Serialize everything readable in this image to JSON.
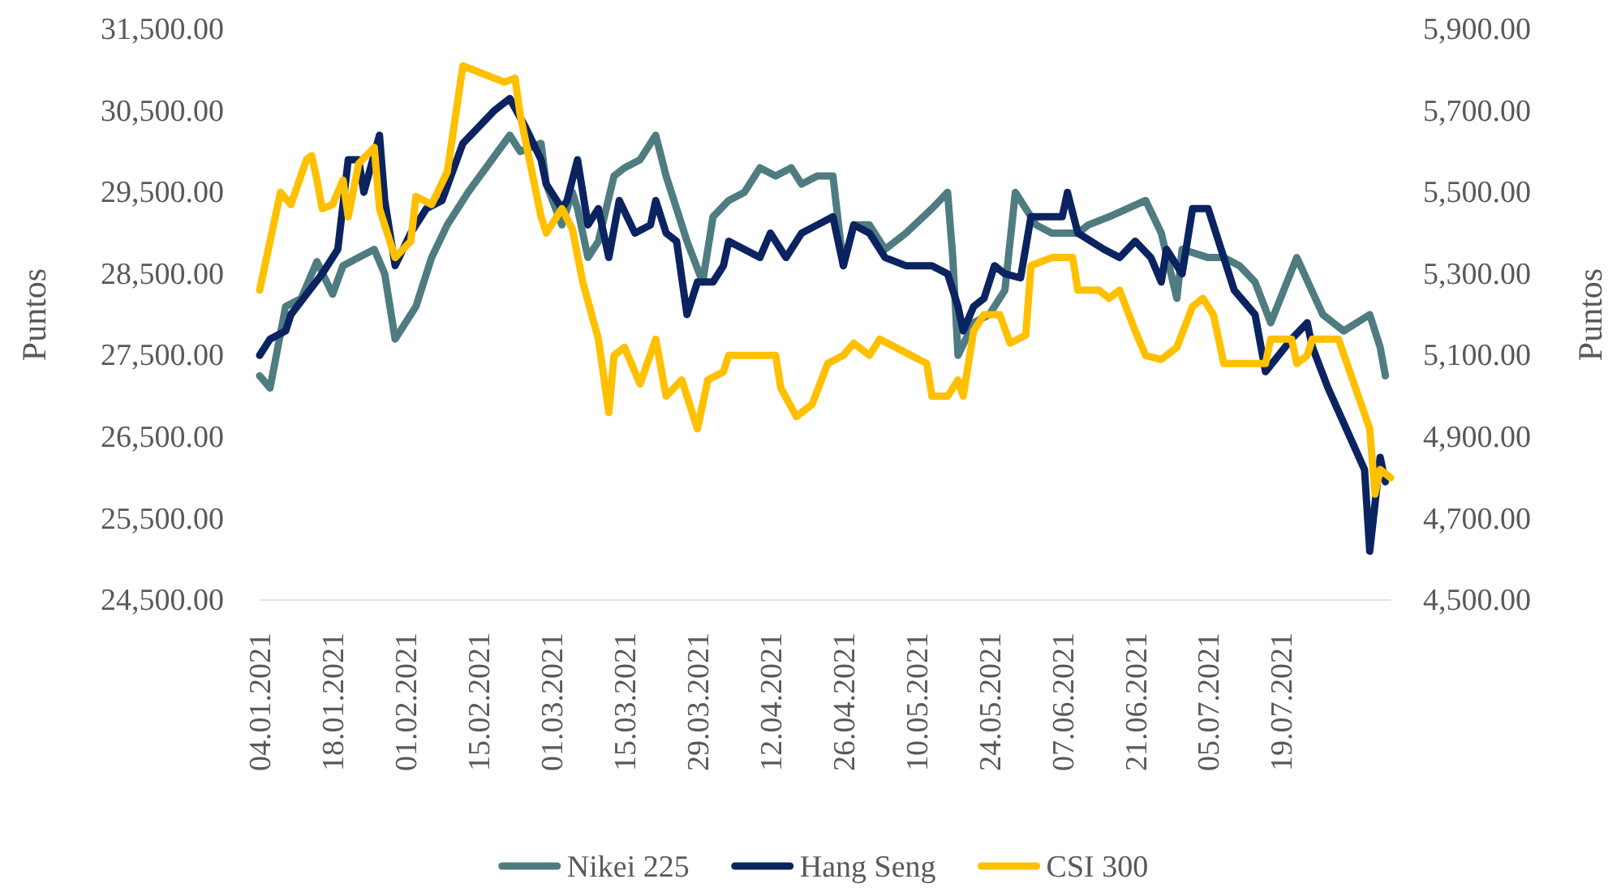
{
  "chart_data": {
    "type": "line",
    "ylabel": "Puntos",
    "y2label": "Puntos",
    "legend": "bottom",
    "line_style": "solid",
    "marker": "none",
    "grid": false,
    "xticks": [
      {
        "value": "2021-01-04",
        "label": "04.01.2021"
      },
      {
        "value": "2021-01-18",
        "label": "18.01.2021"
      },
      {
        "value": "2021-02-01",
        "label": "01.02.2021"
      },
      {
        "value": "2021-02-15",
        "label": "15.02.2021"
      },
      {
        "value": "2021-03-01",
        "label": "01.03.2021"
      },
      {
        "value": "2021-03-15",
        "label": "15.03.2021"
      },
      {
        "value": "2021-03-29",
        "label": "29.03.2021"
      },
      {
        "value": "2021-04-12",
        "label": "12.04.2021"
      },
      {
        "value": "2021-04-26",
        "label": "26.04.2021"
      },
      {
        "value": "2021-05-10",
        "label": "10.05.2021"
      },
      {
        "value": "2021-05-24",
        "label": "24.05.2021"
      },
      {
        "value": "2021-06-07",
        "label": "07.06.2021"
      },
      {
        "value": "2021-06-21",
        "label": "21.06.2021"
      },
      {
        "value": "2021-07-05",
        "label": "05.07.2021"
      },
      {
        "value": "2021-07-19",
        "label": "19.07.2021"
      }
    ],
    "xlim": [
      "2021-01-04",
      "2021-08-09"
    ],
    "ylim": [
      24500,
      31500
    ],
    "yticks": [
      {
        "value": 24500,
        "label": "24,500.00"
      },
      {
        "value": 25500,
        "label": "25,500.00"
      },
      {
        "value": 26500,
        "label": "26,500.00"
      },
      {
        "value": 27500,
        "label": "27,500.00"
      },
      {
        "value": 28500,
        "label": "28,500.00"
      },
      {
        "value": 29500,
        "label": "29,500.00"
      },
      {
        "value": 30500,
        "label": "30,500.00"
      },
      {
        "value": 31500,
        "label": "31,500.00"
      }
    ],
    "y2lim": [
      4500,
      5900
    ],
    "y2ticks": [
      {
        "value": 4500,
        "label": "4,500.00"
      },
      {
        "value": 4700,
        "label": "4,700.00"
      },
      {
        "value": 4900,
        "label": "4,900.00"
      },
      {
        "value": 5100,
        "label": "5,100.00"
      },
      {
        "value": 5300,
        "label": "5,300.00"
      },
      {
        "value": 5500,
        "label": "5,500.00"
      },
      {
        "value": 5700,
        "label": "5,700.00"
      },
      {
        "value": 5900,
        "label": "5,900.00"
      }
    ],
    "series": [
      {
        "name": "Nikei 225",
        "color": "#4f7c80",
        "x": [
          "2021-01-04",
          "2021-01-06",
          "2021-01-09",
          "2021-01-12",
          "2021-01-15",
          "2021-01-18",
          "2021-01-20",
          "2021-01-23",
          "2021-01-26",
          "2021-01-28",
          "2021-01-30",
          "2021-02-03",
          "2021-02-06",
          "2021-02-09",
          "2021-02-13",
          "2021-02-21",
          "2021-02-23",
          "2021-02-27",
          "2021-02-28",
          "2021-03-03",
          "2021-03-05",
          "2021-03-06",
          "2021-03-08",
          "2021-03-10",
          "2021-03-13",
          "2021-03-15",
          "2021-03-18",
          "2021-03-21",
          "2021-03-23",
          "2021-03-27",
          "2021-03-30",
          "2021-04-01",
          "2021-04-04",
          "2021-04-07",
          "2021-04-10",
          "2021-04-13",
          "2021-04-16",
          "2021-04-18",
          "2021-04-21",
          "2021-04-24",
          "2021-04-26",
          "2021-04-28",
          "2021-05-01",
          "2021-05-04",
          "2021-05-08",
          "2021-05-13",
          "2021-05-16",
          "2021-05-17",
          "2021-05-18",
          "2021-05-21",
          "2021-05-24",
          "2021-05-27",
          "2021-05-29",
          "2021-06-02",
          "2021-06-05",
          "2021-06-10",
          "2021-06-12",
          "2021-06-16",
          "2021-06-23",
          "2021-06-26",
          "2021-06-29",
          "2021-06-30",
          "2021-07-05",
          "2021-07-08",
          "2021-07-11",
          "2021-07-14",
          "2021-07-17",
          "2021-07-22",
          "2021-07-27",
          "2021-07-31",
          "2021-08-05",
          "2021-08-07",
          "2021-08-08"
        ],
        "values": [
          27250,
          27100,
          28100,
          28200,
          28650,
          28250,
          28600,
          28700,
          28800,
          28500,
          27700,
          28100,
          28700,
          29100,
          29500,
          30200,
          30000,
          30100,
          29600,
          29100,
          29500,
          29300,
          28700,
          28900,
          29700,
          29800,
          29900,
          30200,
          29700,
          28900,
          28400,
          29200,
          29400,
          29500,
          29800,
          29700,
          29800,
          29600,
          29700,
          29700,
          28600,
          29100,
          29100,
          28800,
          29000,
          29300,
          29500,
          28700,
          27500,
          27900,
          28000,
          28300,
          29500,
          29100,
          29000,
          29000,
          29100,
          29200,
          29400,
          29000,
          28200,
          28800,
          28700,
          28700,
          28600,
          28400,
          27900,
          28700,
          28000,
          27800,
          28000,
          27600,
          27250
        ]
      },
      {
        "name": "Hang Seng",
        "color": "#0b2360",
        "x": [
          "2021-01-04",
          "2021-01-06",
          "2021-01-09",
          "2021-01-10",
          "2021-01-13",
          "2021-01-16",
          "2021-01-19",
          "2021-01-21",
          "2021-01-23",
          "2021-01-24",
          "2021-01-27",
          "2021-01-28",
          "2021-01-30",
          "2021-02-02",
          "2021-02-05",
          "2021-02-08",
          "2021-02-12",
          "2021-02-18",
          "2021-02-21",
          "2021-02-24",
          "2021-02-27",
          "2021-02-28",
          "2021-03-03",
          "2021-03-04",
          "2021-03-06",
          "2021-03-08",
          "2021-03-10",
          "2021-03-12",
          "2021-03-14",
          "2021-03-17",
          "2021-03-20",
          "2021-03-21",
          "2021-03-23",
          "2021-03-25",
          "2021-03-27",
          "2021-03-29",
          "2021-04-01",
          "2021-04-03",
          "2021-04-04",
          "2021-04-07",
          "2021-04-10",
          "2021-04-12",
          "2021-04-15",
          "2021-04-18",
          "2021-04-21",
          "2021-04-24",
          "2021-04-26",
          "2021-04-28",
          "2021-05-01",
          "2021-05-04",
          "2021-05-08",
          "2021-05-13",
          "2021-05-16",
          "2021-05-18",
          "2021-05-19",
          "2021-05-21",
          "2021-05-23",
          "2021-05-25",
          "2021-05-27",
          "2021-05-30",
          "2021-06-01",
          "2021-06-04",
          "2021-06-07",
          "2021-06-08",
          "2021-06-10",
          "2021-06-15",
          "2021-06-18",
          "2021-06-21",
          "2021-06-24",
          "2021-06-26",
          "2021-06-27",
          "2021-06-30",
          "2021-07-02",
          "2021-07-05",
          "2021-07-10",
          "2021-07-14",
          "2021-07-16",
          "2021-07-21",
          "2021-07-24",
          "2021-07-25",
          "2021-07-28",
          "2021-08-04",
          "2021-08-05",
          "2021-08-07",
          "2021-08-08"
        ],
        "values": [
          27500,
          27700,
          27800,
          28000,
          28250,
          28500,
          28800,
          29900,
          29900,
          29500,
          30200,
          29400,
          28600,
          29000,
          29300,
          29400,
          30100,
          30500,
          30650,
          30300,
          29900,
          29600,
          29300,
          29400,
          29900,
          29100,
          29300,
          28700,
          29400,
          29000,
          29100,
          29400,
          29000,
          28900,
          28000,
          28400,
          28400,
          28600,
          28900,
          28800,
          28700,
          29000,
          28700,
          29000,
          29100,
          29200,
          28600,
          29100,
          29000,
          28700,
          28600,
          28600,
          28500,
          28100,
          27800,
          28100,
          28200,
          28600,
          28500,
          28450,
          29200,
          29200,
          29200,
          29500,
          29000,
          28800,
          28700,
          28900,
          28700,
          28400,
          28800,
          28500,
          29300,
          29300,
          28300,
          28000,
          27300,
          27700,
          27900,
          27600,
          27100,
          26100,
          25100,
          26250,
          25950
        ]
      },
      {
        "name": "CSI 300",
        "color": "#ffc000",
        "axis": "y2",
        "x": [
          "2021-01-04",
          "2021-01-06",
          "2021-01-08",
          "2021-01-10",
          "2021-01-13",
          "2021-01-14",
          "2021-01-15",
          "2021-01-16",
          "2021-01-18",
          "2021-01-20",
          "2021-01-21",
          "2021-01-23",
          "2021-01-26",
          "2021-01-27",
          "2021-01-30",
          "2021-02-02",
          "2021-02-03",
          "2021-02-06",
          "2021-02-09",
          "2021-02-12",
          "2021-02-20",
          "2021-02-22",
          "2021-02-23",
          "2021-02-27",
          "2021-02-28",
          "2021-03-03",
          "2021-03-05",
          "2021-03-07",
          "2021-03-10",
          "2021-03-12",
          "2021-03-13",
          "2021-03-15",
          "2021-03-18",
          "2021-03-21",
          "2021-03-23",
          "2021-03-26",
          "2021-03-29",
          "2021-03-31",
          "2021-04-03",
          "2021-04-04",
          "2021-04-09",
          "2021-04-13",
          "2021-04-14",
          "2021-04-17",
          "2021-04-20",
          "2021-04-23",
          "2021-04-26",
          "2021-04-28",
          "2021-05-01",
          "2021-05-03",
          "2021-05-06",
          "2021-05-12",
          "2021-05-13",
          "2021-05-16",
          "2021-05-18",
          "2021-05-19",
          "2021-05-21",
          "2021-05-23",
          "2021-05-26",
          "2021-05-28",
          "2021-05-31",
          "2021-06-01",
          "2021-06-05",
          "2021-06-09",
          "2021-06-10",
          "2021-06-14",
          "2021-06-16",
          "2021-06-18",
          "2021-06-21",
          "2021-06-23",
          "2021-06-26",
          "2021-06-29",
          "2021-07-02",
          "2021-07-04",
          "2021-07-06",
          "2021-07-08",
          "2021-07-13",
          "2021-07-16",
          "2021-07-17",
          "2021-07-21",
          "2021-07-22",
          "2021-07-24",
          "2021-07-25",
          "2021-07-30",
          "2021-08-05",
          "2021-08-06",
          "2021-08-07",
          "2021-08-09"
        ],
        "values": [
          5260,
          5380,
          5500,
          5470,
          5580,
          5590,
          5530,
          5460,
          5470,
          5530,
          5440,
          5570,
          5610,
          5460,
          5340,
          5380,
          5490,
          5470,
          5550,
          5810,
          5770,
          5780,
          5690,
          5440,
          5400,
          5460,
          5410,
          5280,
          5140,
          4960,
          5100,
          5120,
          5030,
          5140,
          5000,
          5040,
          4920,
          5040,
          5060,
          5100,
          5100,
          5100,
          5020,
          4950,
          4980,
          5080,
          5100,
          5130,
          5100,
          5140,
          5120,
          5080,
          5000,
          5000,
          5040,
          5000,
          5160,
          5200,
          5200,
          5130,
          5150,
          5320,
          5340,
          5340,
          5260,
          5260,
          5240,
          5260,
          5160,
          5100,
          5090,
          5120,
          5220,
          5240,
          5200,
          5080,
          5080,
          5080,
          5140,
          5140,
          5080,
          5100,
          5140,
          5140,
          4920,
          4760,
          4820,
          4800
        ]
      }
    ]
  }
}
